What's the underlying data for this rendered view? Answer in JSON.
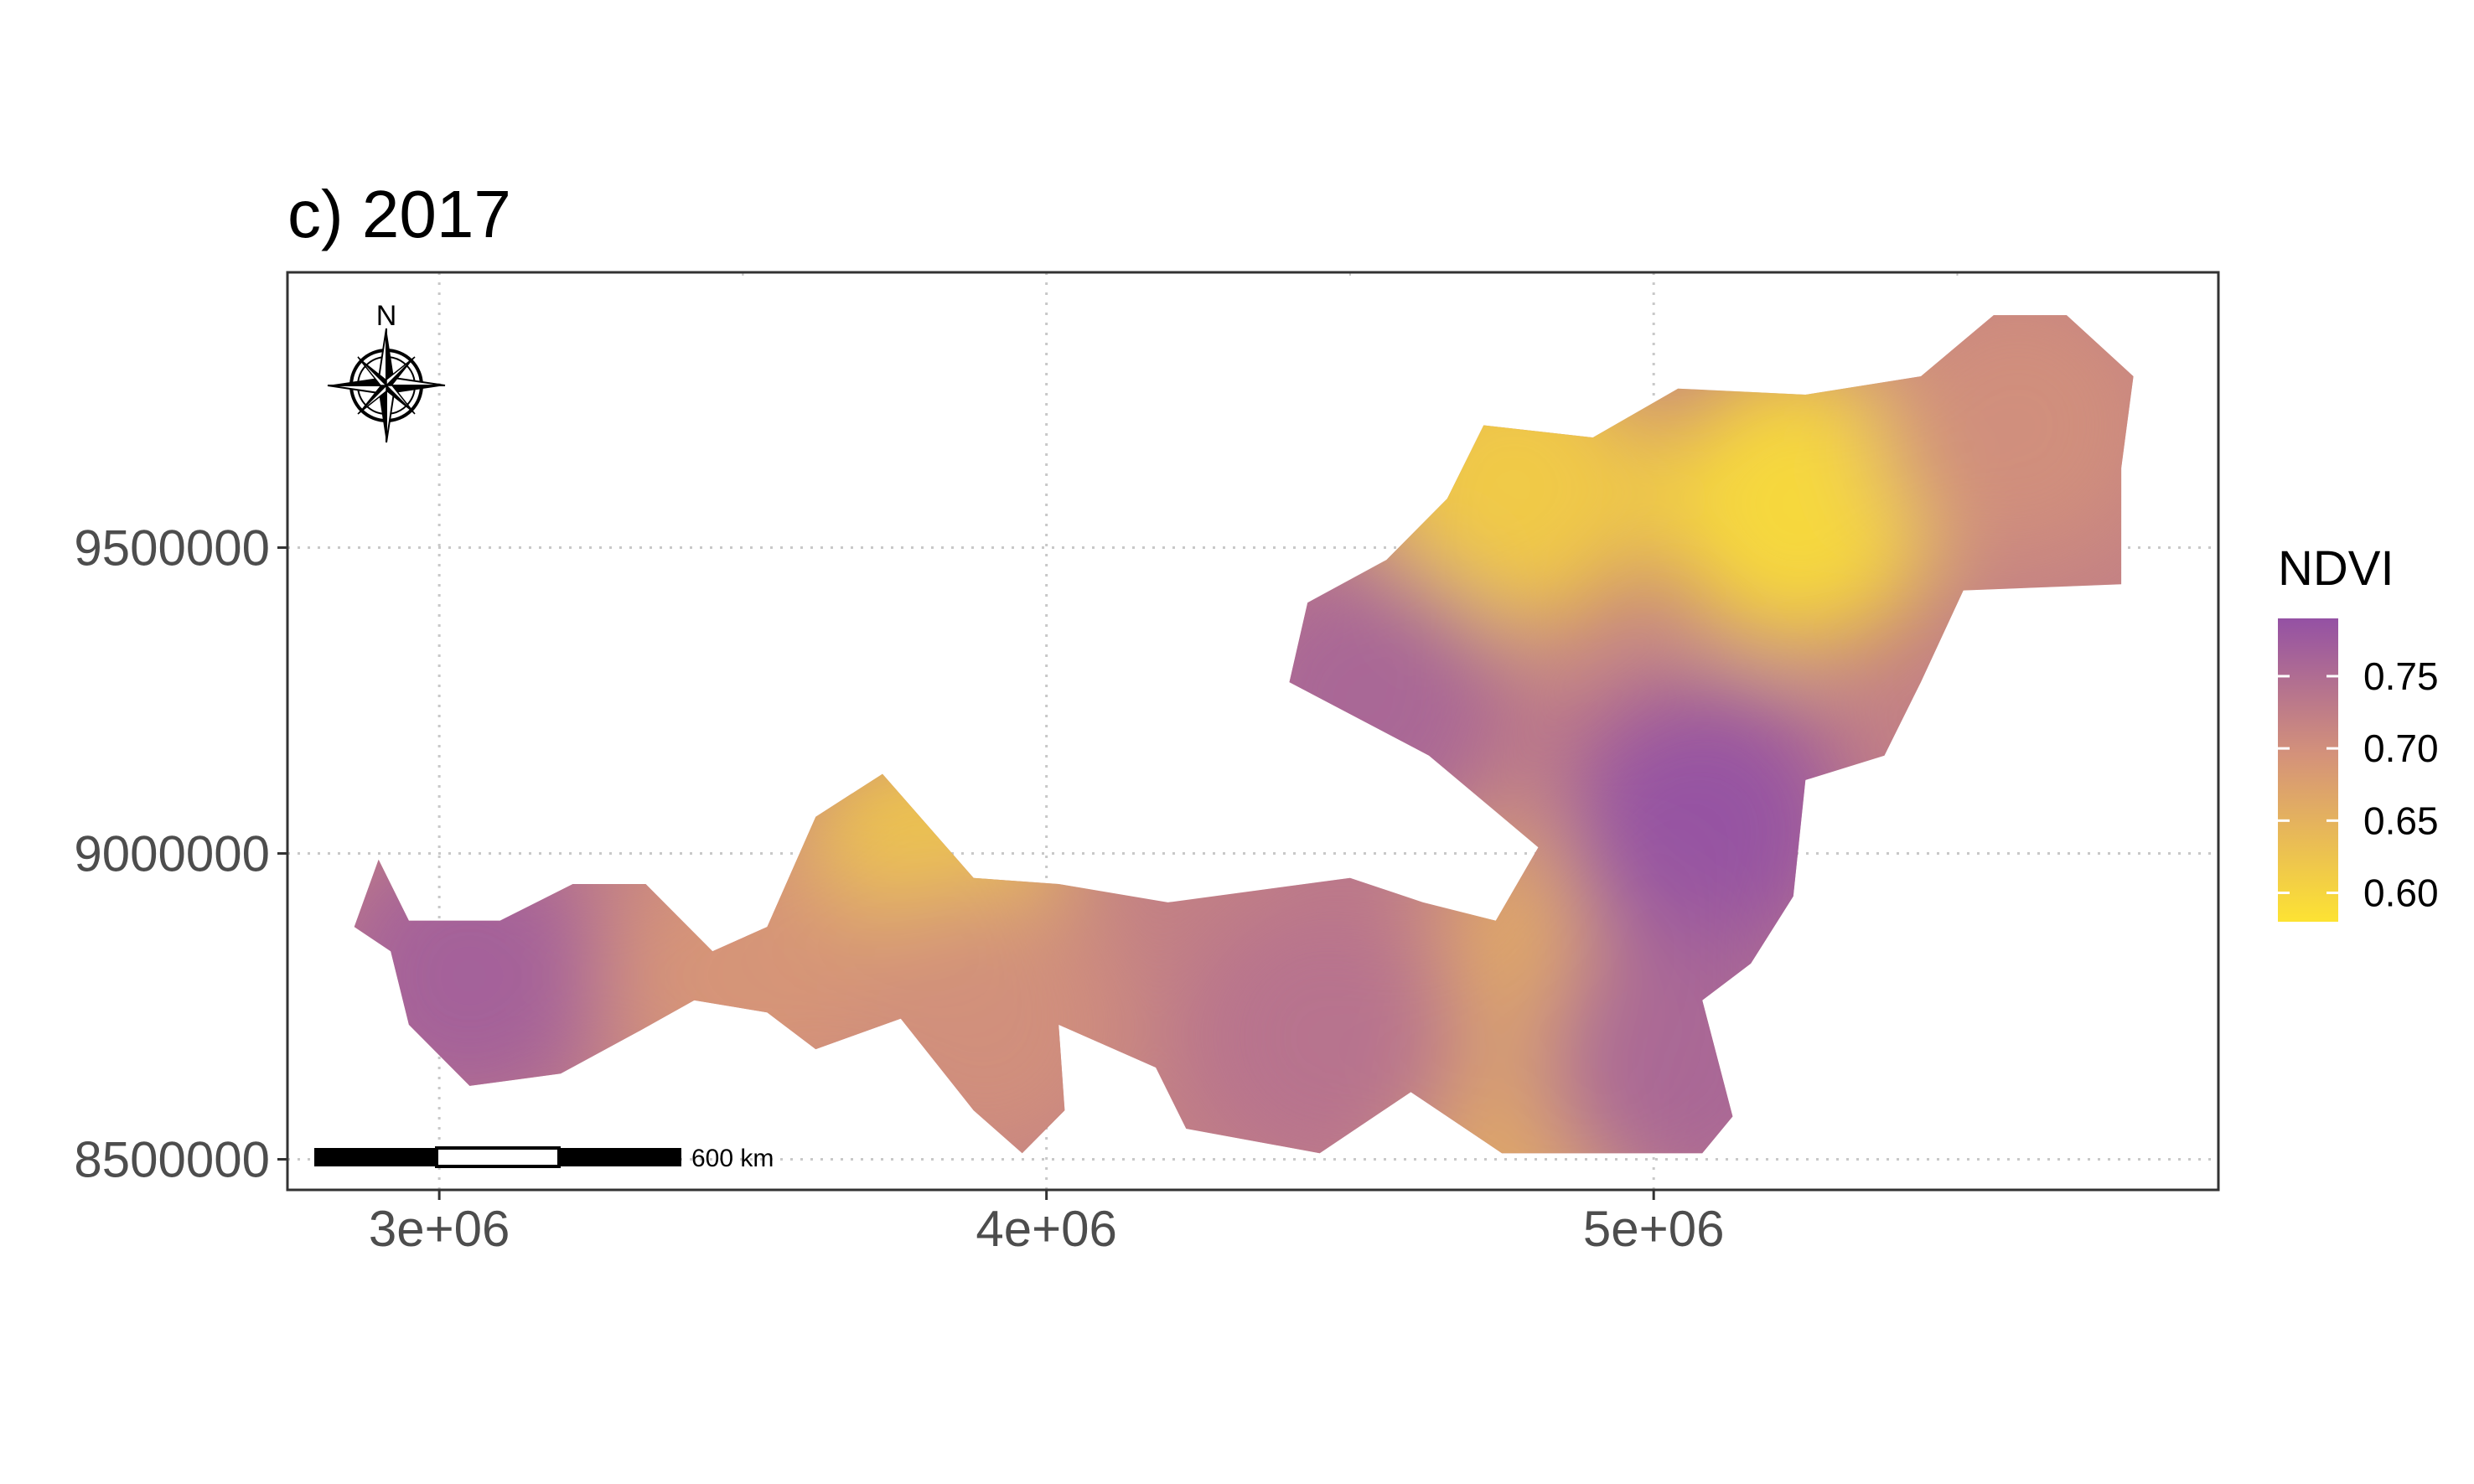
{
  "title": "c) 2017",
  "map_type": "raster choropleth",
  "chart_data": {
    "type": "heatmap",
    "title": "c) 2017",
    "xlabel": "",
    "ylabel": "",
    "xlim": [
      2750000,
      5930000
    ],
    "ylim": [
      8450000,
      9950000
    ],
    "x_ticks": [
      3000000,
      4000000,
      5000000
    ],
    "x_tick_labels": [
      "3e+06",
      "4e+06",
      "5e+06"
    ],
    "y_ticks": [
      8500000,
      9000000,
      9500000
    ],
    "y_tick_labels": [
      "8500000",
      "9000000",
      "9500000"
    ],
    "grid": true,
    "variable": "NDVI",
    "value_range": [
      0.58,
      0.79
    ],
    "region_outline": [
      [
        2900000,
        8990000
      ],
      [
        2950000,
        8890000
      ],
      [
        3100000,
        8890000
      ],
      [
        3220000,
        8950000
      ],
      [
        3340000,
        8950000
      ],
      [
        3450000,
        8840000
      ],
      [
        3540000,
        8880000
      ],
      [
        3620000,
        9060000
      ],
      [
        3730000,
        9130000
      ],
      [
        3880000,
        8960000
      ],
      [
        4020000,
        8950000
      ],
      [
        4200000,
        8920000
      ],
      [
        4500000,
        8960000
      ],
      [
        4620000,
        8920000
      ],
      [
        4740000,
        8890000
      ],
      [
        4810000,
        9010000
      ],
      [
        4630000,
        9160000
      ],
      [
        4400000,
        9280000
      ],
      [
        4430000,
        9410000
      ],
      [
        4560000,
        9480000
      ],
      [
        4660000,
        9580000
      ],
      [
        4720000,
        9700000
      ],
      [
        4900000,
        9680000
      ],
      [
        5040000,
        9760000
      ],
      [
        5250000,
        9750000
      ],
      [
        5440000,
        9780000
      ],
      [
        5560000,
        9880000
      ],
      [
        5680000,
        9880000
      ],
      [
        5790000,
        9780000
      ],
      [
        5770000,
        9630000
      ],
      [
        5770000,
        9440000
      ],
      [
        5510000,
        9430000
      ],
      [
        5440000,
        9280000
      ],
      [
        5380000,
        9160000
      ],
      [
        5250000,
        9120000
      ],
      [
        5230000,
        8930000
      ],
      [
        5160000,
        8820000
      ],
      [
        5080000,
        8760000
      ],
      [
        5130000,
        8570000
      ],
      [
        5080000,
        8510000
      ],
      [
        4750000,
        8510000
      ],
      [
        4600000,
        8610000
      ],
      [
        4450000,
        8510000
      ],
      [
        4230000,
        8550000
      ],
      [
        4180000,
        8650000
      ],
      [
        4020000,
        8720000
      ],
      [
        4030000,
        8580000
      ],
      [
        3960000,
        8510000
      ],
      [
        3880000,
        8580000
      ],
      [
        3760000,
        8730000
      ],
      [
        3620000,
        8680000
      ],
      [
        3540000,
        8740000
      ],
      [
        3420000,
        8760000
      ],
      [
        3330000,
        8710000
      ],
      [
        3200000,
        8640000
      ],
      [
        3050000,
        8620000
      ],
      [
        2950000,
        8720000
      ],
      [
        2920000,
        8840000
      ],
      [
        2860000,
        8880000
      ]
    ],
    "hotspots": [
      {
        "x": 5240000,
        "y": 9570000,
        "value": 0.59
      },
      {
        "x": 4770000,
        "y": 9600000,
        "value": 0.61
      },
      {
        "x": 3800000,
        "y": 8960000,
        "value": 0.62
      },
      {
        "x": 4880000,
        "y": 8840000,
        "value": 0.66
      },
      {
        "x": 4800000,
        "y": 8580000,
        "value": 0.66
      },
      {
        "x": 5600000,
        "y": 9700000,
        "value": 0.7
      },
      {
        "x": 5080000,
        "y": 9040000,
        "value": 0.79
      },
      {
        "x": 4520000,
        "y": 9250000,
        "value": 0.76
      },
      {
        "x": 3050000,
        "y": 8800000,
        "value": 0.77
      },
      {
        "x": 4460000,
        "y": 8700000,
        "value": 0.74
      },
      {
        "x": 5050000,
        "y": 8660000,
        "value": 0.76
      },
      {
        "x": 3500000,
        "y": 8800000,
        "value": 0.69
      },
      {
        "x": 3900000,
        "y": 8720000,
        "value": 0.7
      }
    ]
  },
  "legend": {
    "title": "NDVI",
    "ticks": [
      0.6,
      0.65,
      0.7,
      0.75
    ],
    "labels": [
      "0.60",
      "0.65",
      "0.70",
      "0.75"
    ],
    "color_low": "#fde333",
    "color_mid": "#d4927a",
    "color_high": "#9451a4"
  },
  "scale_bar": {
    "label": "600 km",
    "segments": 3
  },
  "north_arrow": {
    "label": "N",
    "icon": "compass-rose-icon"
  },
  "colors": {
    "panel_border": "#333333",
    "grid": "#c8c8c8",
    "axis_text": "#4d4d4d"
  }
}
